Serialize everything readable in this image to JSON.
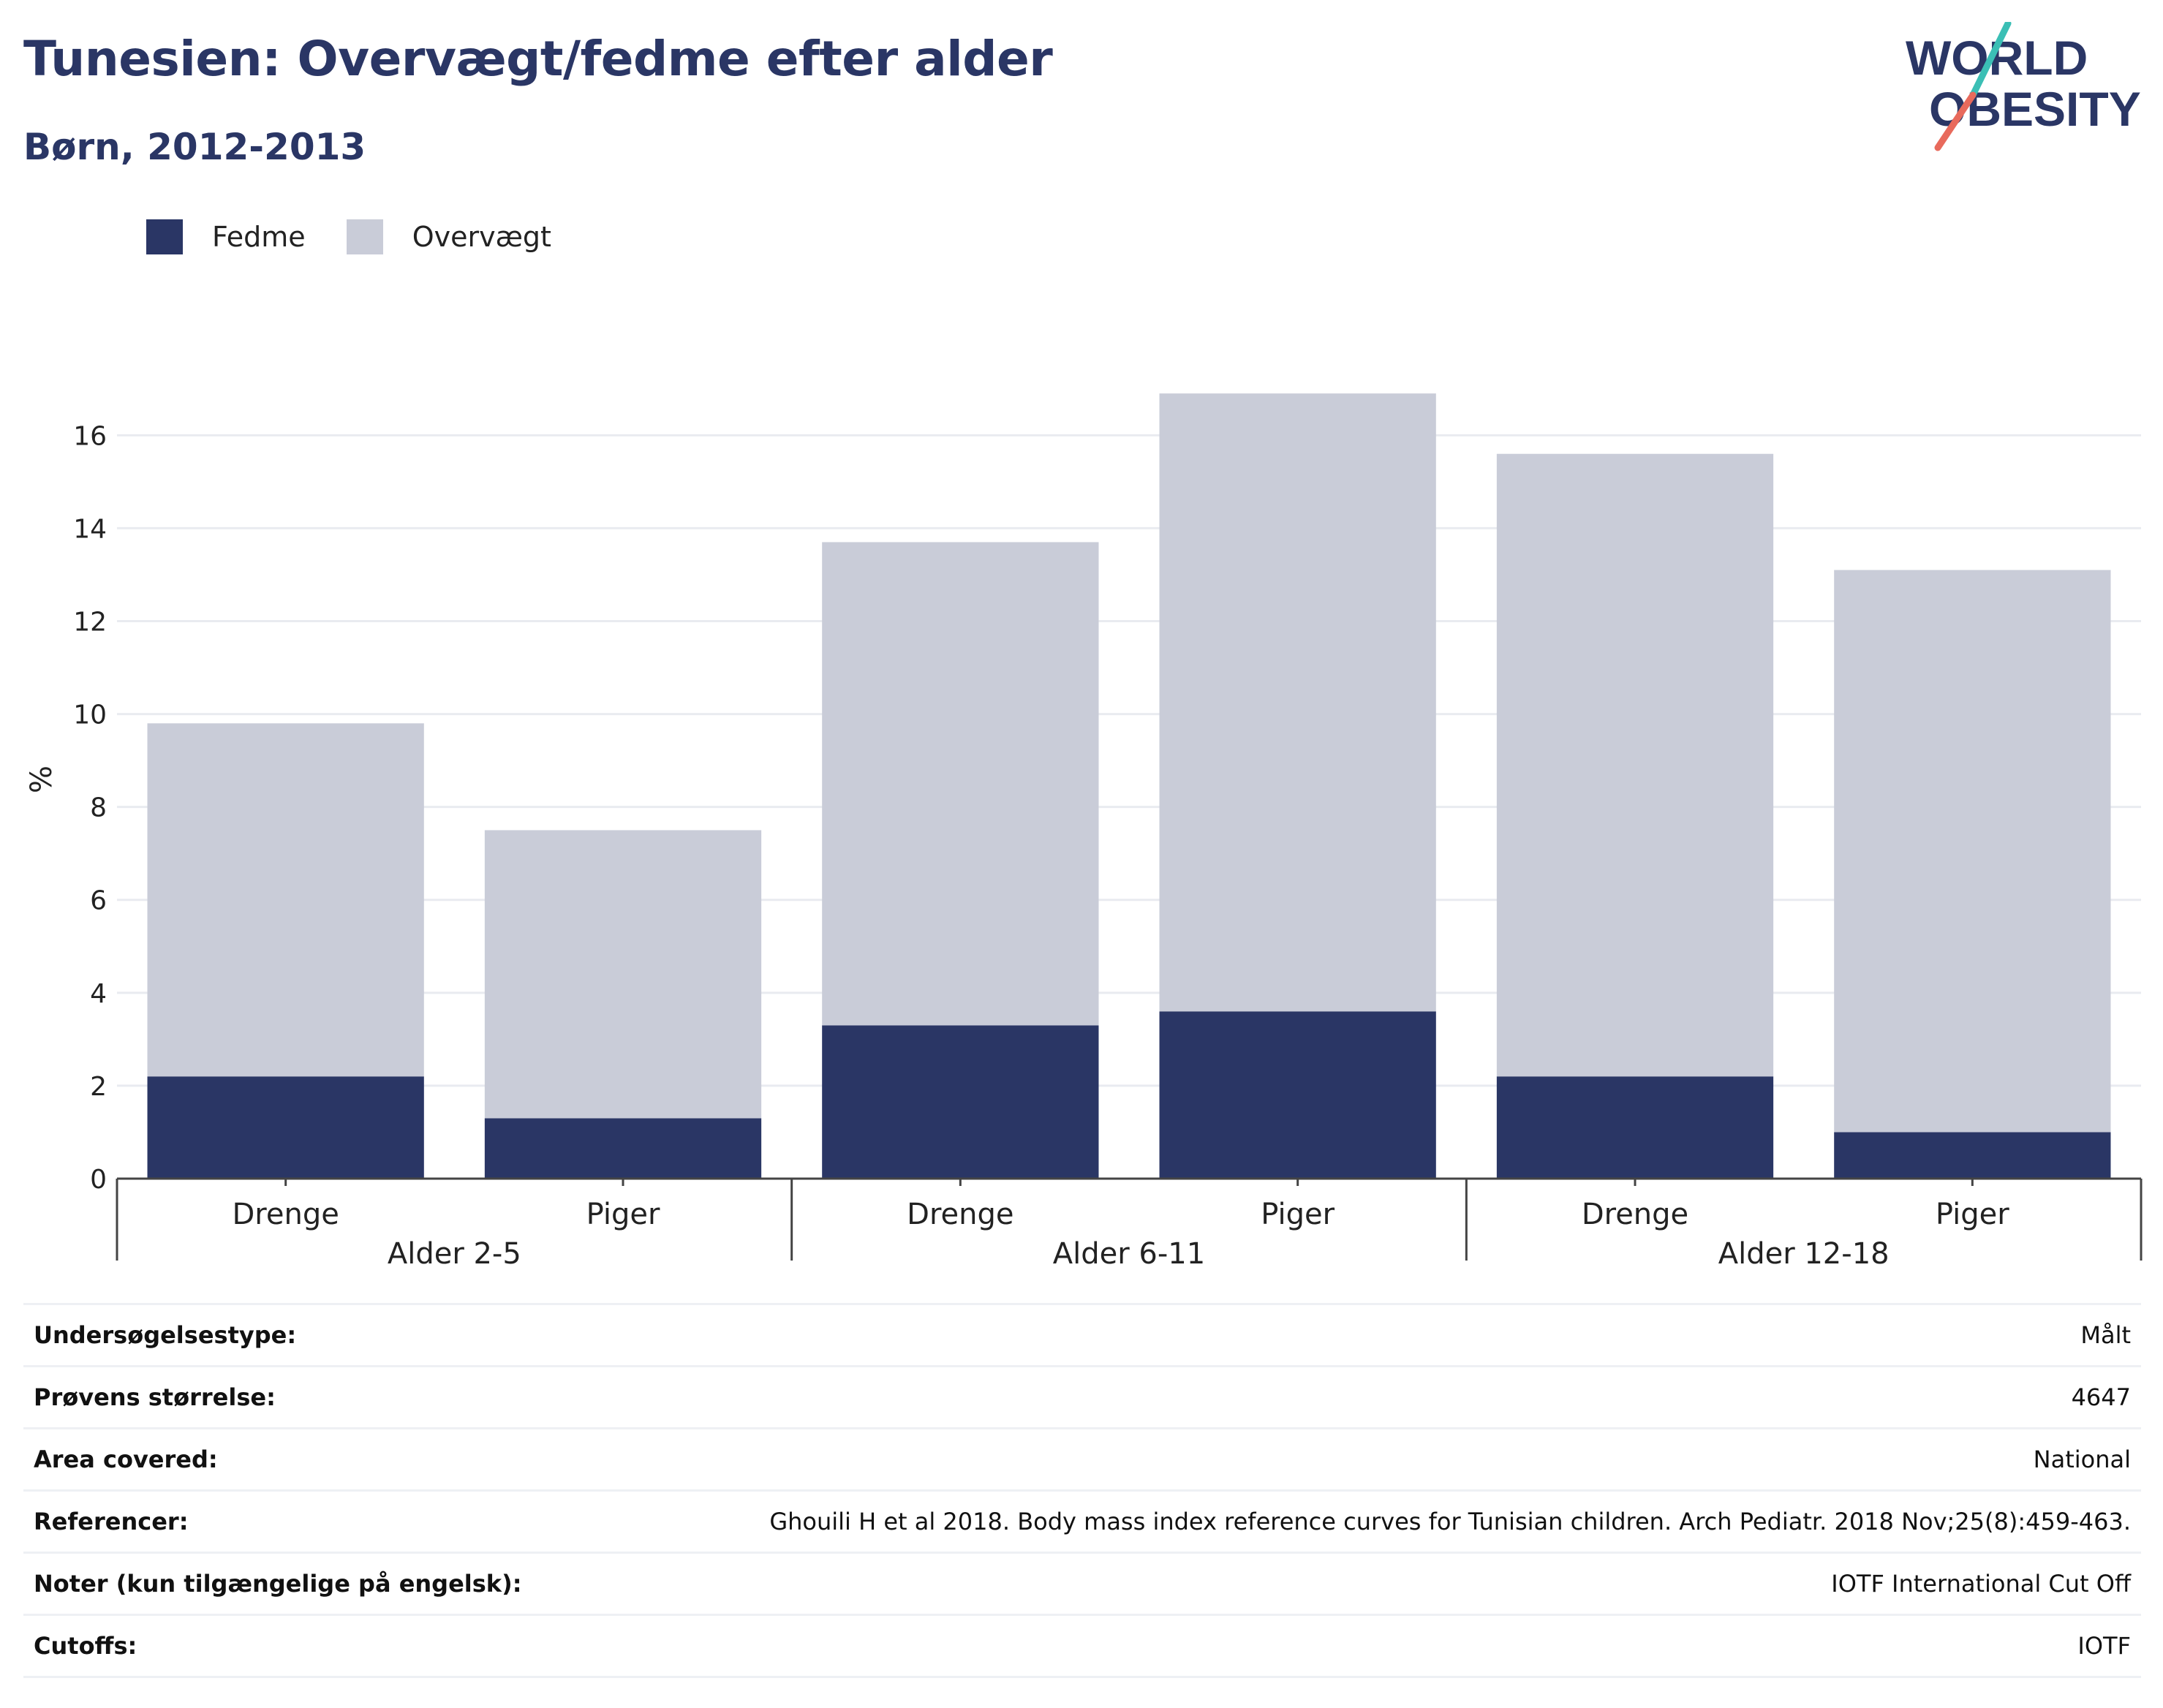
{
  "header": {
    "title": "Tunesien: Overvægt/fedme efter alder",
    "subtitle": "Børn, 2012-2013"
  },
  "logo": {
    "line1": "WORLD",
    "line2": "OBESITY"
  },
  "colors": {
    "obesity": "#2a3665",
    "overweight": "#c9ccd8",
    "grid": "#e9ebf0",
    "title": "#2a3665",
    "logo_teal": "#3bbfb5",
    "logo_coral": "#e86a5c"
  },
  "chart_data": {
    "type": "bar",
    "stacked": true,
    "ylabel": "%",
    "ylim": [
      0,
      17.5
    ],
    "yticks": [
      0,
      2,
      4,
      6,
      8,
      10,
      12,
      14,
      16
    ],
    "grid": true,
    "legend_position": "top-left",
    "categories": [
      "Drenge",
      "Piger",
      "Drenge",
      "Piger",
      "Drenge",
      "Piger"
    ],
    "groups": [
      {
        "label": "Alder 2-5",
        "span": 2
      },
      {
        "label": "Alder 6-11",
        "span": 2
      },
      {
        "label": "Alder 12-18",
        "span": 2
      }
    ],
    "series": [
      {
        "name": "Fedme",
        "color": "#2a3665",
        "values": [
          2.2,
          1.3,
          3.3,
          3.6,
          2.2,
          1.0
        ]
      },
      {
        "name": "Overvægt",
        "color": "#c9ccd8",
        "values": [
          7.6,
          6.2,
          10.4,
          13.3,
          13.4,
          12.1
        ]
      }
    ]
  },
  "info": [
    {
      "key": "Undersøgelsestype:",
      "value": "Målt"
    },
    {
      "key": "Prøvens størrelse:",
      "value": "4647"
    },
    {
      "key": "Area covered:",
      "value": "National"
    },
    {
      "key": "Referencer:",
      "value": "Ghouili H et al 2018. Body mass index reference curves for Tunisian children. Arch Pediatr. 2018 Nov;25(8):459-463."
    },
    {
      "key": "Noter (kun tilgængelige på engelsk):",
      "value": "IOTF International Cut Off"
    },
    {
      "key": "Cutoffs:",
      "value": "IOTF"
    }
  ]
}
